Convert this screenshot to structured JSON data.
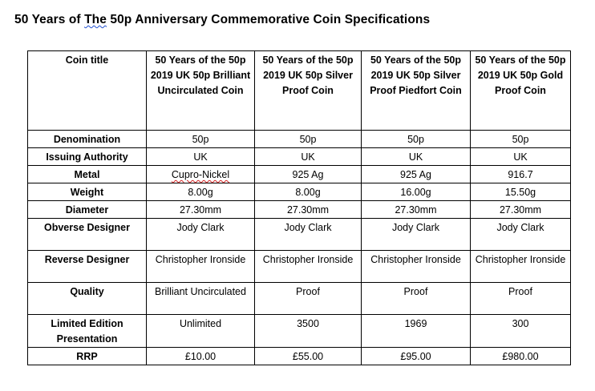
{
  "title": {
    "before": "50 Years of ",
    "the_word": "The",
    "after": " 50p Anniversary Commemorative Coin Specifications"
  },
  "table": {
    "header": {
      "label": "Coin title",
      "coins": [
        "50 Years of the 50p 2019 UK 50p Brilliant Uncirculated Coin",
        "50 Years of the 50p 2019 UK 50p Silver Proof Coin",
        "50 Years of the 50p 2019 UK 50p Silver Proof Piedfort Coin",
        "50 Years of the 50p 2019 UK 50p Gold Proof Coin"
      ]
    },
    "rows": [
      {
        "label": "Denomination",
        "values": [
          "50p",
          "50p",
          "50p",
          "50p"
        ]
      },
      {
        "label": "Issuing Authority",
        "values": [
          "UK",
          "UK",
          "UK",
          "UK"
        ]
      },
      {
        "label": "Metal",
        "values": [
          "Cupro-Nickel",
          "925 Ag",
          "925 Ag",
          "916.7"
        ]
      },
      {
        "label": "Weight",
        "values": [
          "8.00g",
          "8.00g",
          "16.00g",
          "15.50g"
        ]
      },
      {
        "label": "Diameter",
        "values": [
          "27.30mm",
          "27.30mm",
          "27.30mm",
          "27.30mm"
        ]
      },
      {
        "label": "Obverse Designer",
        "values": [
          "Jody Clark",
          "Jody Clark",
          "Jody Clark",
          "Jody Clark"
        ]
      },
      {
        "label": "Reverse Designer",
        "values": [
          "Christopher Ironside",
          "Christopher Ironside",
          "Christopher Ironside",
          "Christopher Ironside"
        ]
      },
      {
        "label": "Quality",
        "values": [
          "Brilliant Uncirculated",
          "Proof",
          "Proof",
          "Proof"
        ]
      },
      {
        "label": "Limited Edition Presentation",
        "values": [
          "Unlimited",
          "3500",
          "1969",
          "300"
        ]
      },
      {
        "label": "RRP",
        "values": [
          "£10.00",
          "£55.00",
          "£95.00",
          "£980.00"
        ]
      }
    ]
  }
}
